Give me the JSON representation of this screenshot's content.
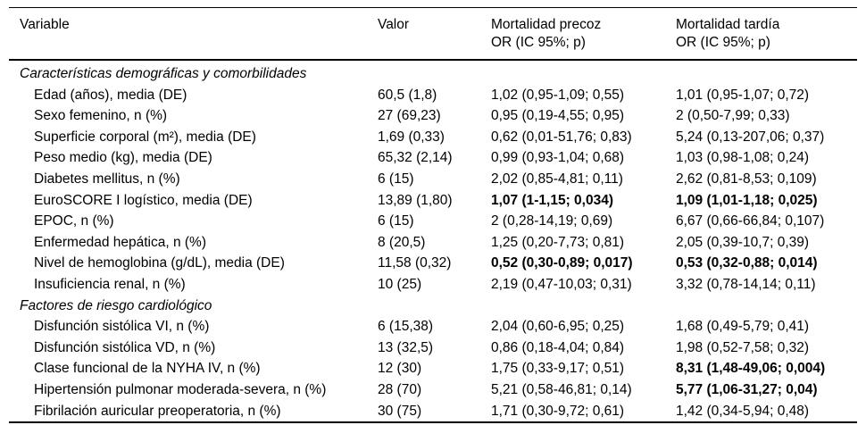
{
  "table": {
    "header": {
      "variable": "Variable",
      "valor": "Valor",
      "precoz_line1": "Mortalidad precoz",
      "precoz_line2": "OR (IC 95%; p)",
      "tardia_line1": "Mortalidad tardía",
      "tardia_line2": "OR (IC 95%; p)"
    },
    "colors": {
      "text": "#000000",
      "background": "#ffffff",
      "rule": "#000000"
    },
    "sections": [
      {
        "title": "Características demográficas y comorbilidades",
        "rows": [
          {
            "variable": "Edad (años), media (DE)",
            "valor": "60,5 (1,8)",
            "precoz": "1,02 (0,95-1,09; 0,55)",
            "precoz_bold": false,
            "tardia": "1,01 (0,95-1,07; 0,72)",
            "tardia_bold": false
          },
          {
            "variable": "Sexo femenino, n (%)",
            "valor": "27 (69,23)",
            "precoz": "0,95 (0,19-4,55; 0,95)",
            "precoz_bold": false,
            "tardia": "2 (0,50-7,99; 0,33)",
            "tardia_bold": false
          },
          {
            "variable": "Superficie corporal (m²), media (DE)",
            "valor": "1,69 (0,33)",
            "precoz": "0,62 (0,01-51,76; 0,83)",
            "precoz_bold": false,
            "tardia": "5,24 (0,13-207,06; 0,37)",
            "tardia_bold": false
          },
          {
            "variable": "Peso medio (kg), media (DE)",
            "valor": "65,32 (2,14)",
            "precoz": "0,99 (0,93-1,04; 0,68)",
            "precoz_bold": false,
            "tardia": "1,03 (0,98-1,08; 0,24)",
            "tardia_bold": false
          },
          {
            "variable": "Diabetes mellitus, n (%)",
            "valor": "6 (15)",
            "precoz": "2,02 (0,85-4,81; 0,11)",
            "precoz_bold": false,
            "tardia": "2,62 (0,81-8,53; 0,109)",
            "tardia_bold": false
          },
          {
            "variable": "EuroSCORE I logístico, media (DE)",
            "valor": "13,89 (1,80)",
            "precoz": "1,07 (1-1,15; 0,034)",
            "precoz_bold": true,
            "tardia": "1,09 (1,01-1,18; 0,025)",
            "tardia_bold": true
          },
          {
            "variable": "EPOC, n (%)",
            "valor": "6 (15)",
            "precoz": "2 (0,28-14,19; 0,69)",
            "precoz_bold": false,
            "tardia": "6,67 (0,66-66,84; 0,107)",
            "tardia_bold": false
          },
          {
            "variable": "Enfermedad hepática, n (%)",
            "valor": "8 (20,5)",
            "precoz": "1,25 (0,20-7,73; 0,81)",
            "precoz_bold": false,
            "tardia": "2,05 (0,39-10,7; 0,39)",
            "tardia_bold": false
          },
          {
            "variable": "Nivel de hemoglobina (g/dL), media (DE)",
            "valor": "11,58 (0,32)",
            "precoz": "0,52 (0,30-0,89; 0,017)",
            "precoz_bold": true,
            "tardia": "0,53 (0,32-0,88; 0,014)",
            "tardia_bold": true
          },
          {
            "variable": "Insuficiencia renal, n (%)",
            "valor": "10 (25)",
            "precoz": "2,19 (0,47-10,03; 0,31)",
            "precoz_bold": false,
            "tardia": "3,32 (0,78-14,14; 0,11)",
            "tardia_bold": false
          }
        ]
      },
      {
        "title": "Factores de riesgo cardiológico",
        "rows": [
          {
            "variable": "Disfunción sistólica VI, n (%)",
            "valor": "6 (15,38)",
            "precoz": "2,04 (0,60-6,95; 0,25)",
            "precoz_bold": false,
            "tardia": "1,68 (0,49-5,79; 0,41)",
            "tardia_bold": false
          },
          {
            "variable": "Disfunción sistólica VD, n (%)",
            "valor": "13 (32,5)",
            "precoz": "0,86 (0,18-4,04; 0,84)",
            "precoz_bold": false,
            "tardia": "1,98 (0,52-7,58; 0,32)",
            "tardia_bold": false
          },
          {
            "variable": "Clase funcional de la NYHA IV, n (%)",
            "valor": "12 (30)",
            "precoz": "1,75 (0,33-9,17; 0,51)",
            "precoz_bold": false,
            "tardia": "8,31 (1,48-49,06; 0,004)",
            "tardia_bold": true
          },
          {
            "variable": "Hipertensión pulmonar moderada-severa, n (%)",
            "valor": "28 (70)",
            "precoz": "5,21 (0,58-46,81; 0,14)",
            "precoz_bold": false,
            "tardia": "5,77 (1,06-31,27; 0,04)",
            "tardia_bold": true
          },
          {
            "variable": "Fibrilación auricular preoperatoria, n (%)",
            "valor": "30 (75)",
            "precoz": "1,71 (0,30-9,72; 0,61)",
            "precoz_bold": false,
            "tardia": "1,42 (0,34-5,94; 0,48)",
            "tardia_bold": false
          }
        ]
      }
    ]
  }
}
